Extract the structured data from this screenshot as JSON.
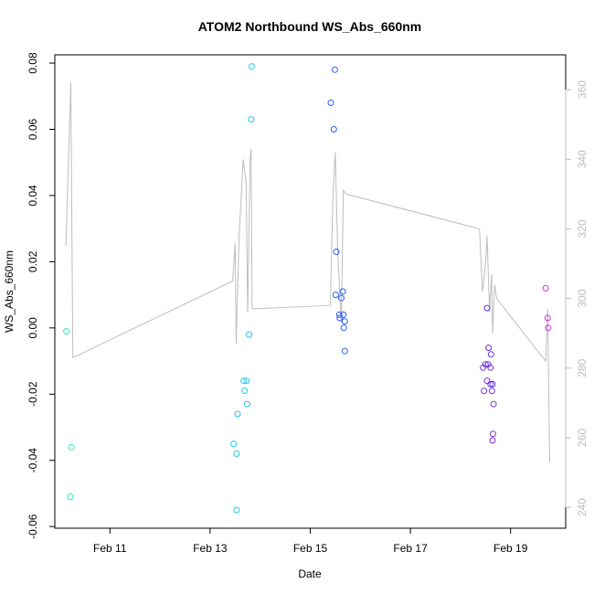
{
  "chart_data": {
    "type": "scatter",
    "title": "ATOM2 Northbound WS_Abs_660nm",
    "xlabel": "Date",
    "ylabel": "WS_Abs_660nm",
    "xlim": [
      9.9,
      20.1
    ],
    "ylim": [
      -0.0605,
      0.0825
    ],
    "y2lim": [
      234,
      370
    ],
    "x_ticks": [
      {
        "value": 11,
        "label": "Feb 11"
      },
      {
        "value": 13,
        "label": "Feb 13"
      },
      {
        "value": 15,
        "label": "Feb 15"
      },
      {
        "value": 17,
        "label": "Feb 17"
      },
      {
        "value": 19,
        "label": "Feb 19"
      }
    ],
    "y_ticks": [
      {
        "value": -0.06,
        "label": "-0.06"
      },
      {
        "value": -0.04,
        "label": "-0.04"
      },
      {
        "value": -0.02,
        "label": "-0.02"
      },
      {
        "value": 0.0,
        "label": "0.00"
      },
      {
        "value": 0.02,
        "label": "0.02"
      },
      {
        "value": 0.04,
        "label": "0.04"
      },
      {
        "value": 0.06,
        "label": "0.06"
      },
      {
        "value": 0.08,
        "label": "0.08"
      }
    ],
    "y2_ticks": [
      {
        "value": 240,
        "label": "240"
      },
      {
        "value": 260,
        "label": "260"
      },
      {
        "value": 280,
        "label": "280"
      },
      {
        "value": 300,
        "label": "300"
      },
      {
        "value": 320,
        "label": "320"
      },
      {
        "value": 340,
        "label": "340"
      },
      {
        "value": 360,
        "label": "360"
      }
    ],
    "points": [
      {
        "x": 10.13,
        "y": -0.001,
        "color": "#2ee8b0"
      },
      {
        "x": 10.23,
        "y": -0.036,
        "color": "#2ee8c4"
      },
      {
        "x": 10.21,
        "y": -0.051,
        "color": "#2ee8c4"
      },
      {
        "x": 13.47,
        "y": -0.035,
        "color": "#22c8ee"
      },
      {
        "x": 13.53,
        "y": -0.038,
        "color": "#22c8ee"
      },
      {
        "x": 13.55,
        "y": -0.026,
        "color": "#22c8ee"
      },
      {
        "x": 13.53,
        "y": -0.055,
        "color": "#22c8ee"
      },
      {
        "x": 13.67,
        "y": -0.016,
        "color": "#22c4ee"
      },
      {
        "x": 13.73,
        "y": -0.016,
        "color": "#22c4ee"
      },
      {
        "x": 13.69,
        "y": -0.019,
        "color": "#22c4ee"
      },
      {
        "x": 13.74,
        "y": -0.023,
        "color": "#22c4ee"
      },
      {
        "x": 13.78,
        "y": -0.002,
        "color": "#22c4ee"
      },
      {
        "x": 13.82,
        "y": 0.063,
        "color": "#22c4ee"
      },
      {
        "x": 13.83,
        "y": 0.079,
        "color": "#22c4ee"
      },
      {
        "x": 15.41,
        "y": 0.068,
        "color": "#2a5ef0"
      },
      {
        "x": 15.47,
        "y": 0.06,
        "color": "#2a5ef0"
      },
      {
        "x": 15.49,
        "y": 0.078,
        "color": "#2a5ef0"
      },
      {
        "x": 15.52,
        "y": 0.023,
        "color": "#2a5ef0"
      },
      {
        "x": 15.51,
        "y": 0.01,
        "color": "#2a5ef0"
      },
      {
        "x": 15.58,
        "y": 0.004,
        "color": "#2a5ef0"
      },
      {
        "x": 15.59,
        "y": 0.003,
        "color": "#2a5ef0"
      },
      {
        "x": 15.62,
        "y": 0.009,
        "color": "#2a5ef0"
      },
      {
        "x": 15.65,
        "y": 0.011,
        "color": "#2a5ef0"
      },
      {
        "x": 15.66,
        "y": 0.004,
        "color": "#2a5ef0"
      },
      {
        "x": 15.69,
        "y": 0.002,
        "color": "#2a5ef0"
      },
      {
        "x": 15.67,
        "y": 0.0,
        "color": "#2a5ef0"
      },
      {
        "x": 15.69,
        "y": -0.007,
        "color": "#2a5ef0"
      },
      {
        "x": 18.53,
        "y": 0.006,
        "color": "#5a2ee0"
      },
      {
        "x": 18.56,
        "y": -0.006,
        "color": "#6a2ee0"
      },
      {
        "x": 18.45,
        "y": -0.012,
        "color": "#6a2ee0"
      },
      {
        "x": 18.5,
        "y": -0.011,
        "color": "#6a2ee0"
      },
      {
        "x": 18.55,
        "y": -0.011,
        "color": "#6a2ee0"
      },
      {
        "x": 18.61,
        "y": -0.008,
        "color": "#6a2ee0"
      },
      {
        "x": 18.6,
        "y": -0.012,
        "color": "#6a2ee0"
      },
      {
        "x": 18.53,
        "y": -0.016,
        "color": "#6a2ee0"
      },
      {
        "x": 18.6,
        "y": -0.017,
        "color": "#6a2ee0"
      },
      {
        "x": 18.64,
        "y": -0.017,
        "color": "#6a2ee0"
      },
      {
        "x": 18.47,
        "y": -0.019,
        "color": "#6a2ee0"
      },
      {
        "x": 18.63,
        "y": -0.019,
        "color": "#6a2ee0"
      },
      {
        "x": 18.66,
        "y": -0.023,
        "color": "#7a2ee0"
      },
      {
        "x": 18.65,
        "y": -0.032,
        "color": "#7a2ee0"
      },
      {
        "x": 18.64,
        "y": -0.034,
        "color": "#7a2ee0"
      },
      {
        "x": 19.7,
        "y": 0.012,
        "color": "#d22ee0"
      },
      {
        "x": 19.74,
        "y": 0.003,
        "color": "#d22ee0"
      },
      {
        "x": 19.75,
        "y": 0.0,
        "color": "#d22ee0"
      }
    ],
    "line_series": {
      "name": "secondary axis trace",
      "color": "#bdbdbd",
      "axis": "y2",
      "points": [
        [
          10.12,
          315
        ],
        [
          10.22,
          362
        ],
        [
          10.26,
          283
        ],
        [
          13.45,
          305
        ],
        [
          13.5,
          316
        ],
        [
          13.52,
          287
        ],
        [
          13.58,
          318
        ],
        [
          13.66,
          340
        ],
        [
          13.72,
          333
        ],
        [
          13.75,
          296
        ],
        [
          13.8,
          340
        ],
        [
          13.82,
          343
        ],
        [
          13.84,
          297
        ],
        [
          15.4,
          298
        ],
        [
          15.45,
          328
        ],
        [
          15.5,
          342
        ],
        [
          15.55,
          313
        ],
        [
          15.62,
          293
        ],
        [
          15.66,
          331
        ],
        [
          15.72,
          330
        ],
        [
          18.38,
          320
        ],
        [
          18.44,
          302
        ],
        [
          18.5,
          310
        ],
        [
          18.53,
          318
        ],
        [
          18.58,
          296
        ],
        [
          18.62,
          307
        ],
        [
          18.64,
          290
        ],
        [
          18.68,
          304
        ],
        [
          18.72,
          300
        ],
        [
          19.7,
          282
        ],
        [
          19.74,
          297
        ],
        [
          19.78,
          253
        ]
      ]
    }
  }
}
